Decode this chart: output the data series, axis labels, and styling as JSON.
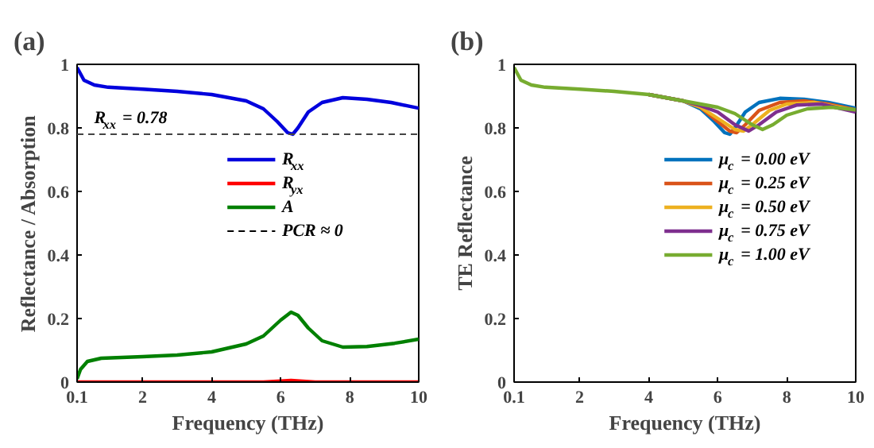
{
  "chart_data": [
    {
      "type": "line",
      "title": "(a)",
      "xlabel": "Frequency (THz)",
      "ylabel": "Reflectance / Absorption",
      "xlim": [
        0.1,
        10
      ],
      "xticks": [
        0.1,
        2,
        4,
        6,
        8,
        10
      ],
      "ylim": [
        0,
        1
      ],
      "yticks": [
        0,
        0.2,
        0.4,
        0.6,
        0.8,
        1
      ],
      "grid": false,
      "legend": "right",
      "line_style": "solid",
      "series": [
        {
          "name": "R$_{xx}$",
          "color": "#0000dd",
          "x": [
            0.1,
            0.3,
            0.6,
            1,
            2,
            3,
            4,
            5,
            5.5,
            5.9,
            6.2,
            6.35,
            6.5,
            6.8,
            7.2,
            7.8,
            8.5,
            9.2,
            10
          ],
          "values": [
            0.99,
            0.95,
            0.935,
            0.928,
            0.922,
            0.915,
            0.905,
            0.885,
            0.86,
            0.82,
            0.785,
            0.78,
            0.8,
            0.85,
            0.88,
            0.895,
            0.89,
            0.88,
            0.862
          ]
        },
        {
          "name": "R$_{yx}$",
          "color": "#ff0000",
          "x": [
            0.1,
            2,
            4,
            5.5,
            6.3,
            7,
            8,
            10
          ],
          "values": [
            0,
            0,
            0,
            0,
            0.005,
            0,
            0,
            0
          ]
        },
        {
          "name": "A",
          "color": "#008000",
          "x": [
            0.1,
            0.2,
            0.4,
            0.8,
            2,
            3,
            4,
            5,
            5.5,
            6,
            6.3,
            6.5,
            6.8,
            7.2,
            7.8,
            8.5,
            9.3,
            10
          ],
          "values": [
            0.01,
            0.04,
            0.065,
            0.075,
            0.08,
            0.085,
            0.095,
            0.12,
            0.145,
            0.195,
            0.22,
            0.21,
            0.17,
            0.13,
            0.11,
            0.112,
            0.122,
            0.135
          ]
        },
        {
          "name": "PCR ≈ 0",
          "color": "#000000",
          "line_style": "dashed",
          "x": [
            0.1,
            10
          ],
          "values": [
            0,
            0
          ]
        }
      ],
      "ref_lines": [
        {
          "axis": "y",
          "value": 0.78,
          "label": "R$_{xx}$ = 0.78",
          "color": "#444444",
          "line_style": "dashed"
        }
      ]
    },
    {
      "type": "line",
      "title": "(b)",
      "xlabel": "Frequency (THz)",
      "ylabel": "TE Reflectance",
      "xlim": [
        0.1,
        10
      ],
      "xticks": [
        0.1,
        2,
        4,
        6,
        8,
        10
      ],
      "ylim": [
        0,
        1
      ],
      "yticks": [
        0,
        0.2,
        0.4,
        0.6,
        0.8,
        1
      ],
      "grid": false,
      "legend": "right",
      "line_style": "solid",
      "series": [
        {
          "name": "μ$_{c}$ = 0.00 eV",
          "color": "#0072bd",
          "x": [
            4,
            5,
            5.5,
            5.9,
            6.2,
            6.35,
            6.5,
            6.8,
            7.2,
            7.8,
            8.5,
            9.2,
            10
          ],
          "values": [
            0.905,
            0.885,
            0.86,
            0.82,
            0.785,
            0.78,
            0.8,
            0.85,
            0.88,
            0.893,
            0.89,
            0.88,
            0.862
          ]
        },
        {
          "name": "μ$_{c}$ = 0.25 eV",
          "color": "#d95319",
          "x": [
            4,
            5,
            5.5,
            6,
            6.35,
            6.55,
            6.8,
            7.2,
            7.8,
            8.5,
            9.2,
            10
          ],
          "values": [
            0.905,
            0.885,
            0.865,
            0.82,
            0.79,
            0.785,
            0.81,
            0.855,
            0.88,
            0.885,
            0.875,
            0.857
          ]
        },
        {
          "name": "μ$_{c}$ = 0.50 eV",
          "color": "#edb120",
          "x": [
            4,
            5,
            5.5,
            6,
            6.5,
            6.75,
            7,
            7.5,
            8,
            8.8,
            10
          ],
          "values": [
            0.905,
            0.885,
            0.865,
            0.83,
            0.795,
            0.79,
            0.81,
            0.855,
            0.875,
            0.88,
            0.855
          ]
        },
        {
          "name": "μ$_{c}$ = 0.75 eV",
          "color": "#7e2f8e",
          "x": [
            4,
            5,
            5.5,
            6,
            6.5,
            6.9,
            7.2,
            7.7,
            8.3,
            9,
            10
          ],
          "values": [
            0.905,
            0.885,
            0.87,
            0.85,
            0.81,
            0.79,
            0.81,
            0.85,
            0.872,
            0.875,
            0.85
          ]
        },
        {
          "name": "μ$_{c}$ = 1.00 eV",
          "color": "#77ac30",
          "x": [
            0.1,
            0.3,
            0.6,
            1,
            2,
            3,
            4,
            5,
            5.5,
            6,
            6.5,
            7,
            7.3,
            7.6,
            8,
            8.6,
            9.3,
            10
          ],
          "values": [
            0.99,
            0.95,
            0.935,
            0.928,
            0.922,
            0.915,
            0.905,
            0.885,
            0.875,
            0.865,
            0.845,
            0.81,
            0.795,
            0.81,
            0.84,
            0.86,
            0.865,
            0.857
          ]
        }
      ]
    }
  ]
}
